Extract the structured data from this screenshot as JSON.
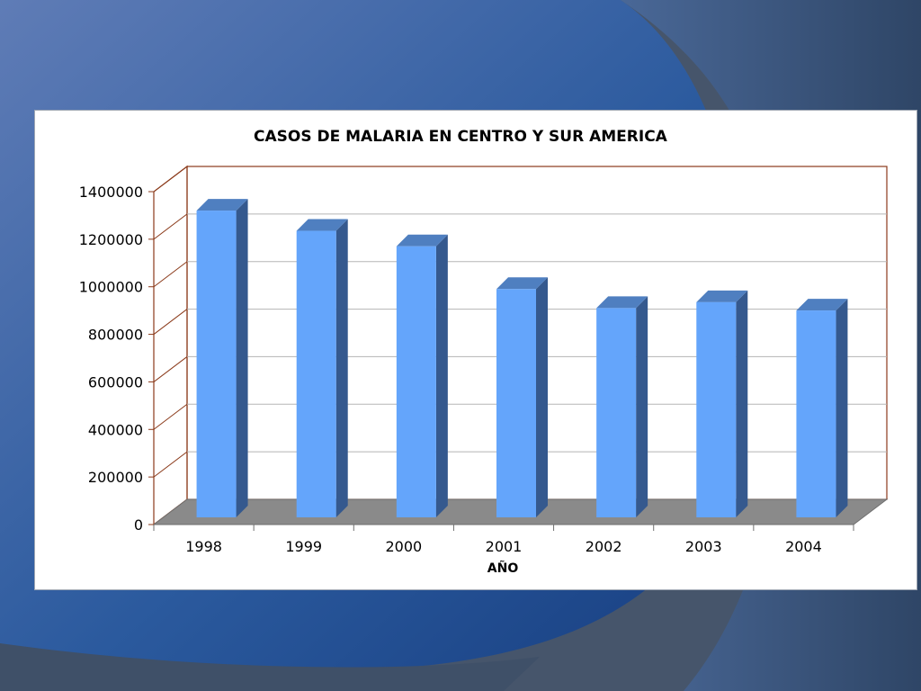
{
  "chart_data": {
    "type": "bar",
    "title": "CASOS DE MALARIA EN CENTRO Y SUR  AMERICA",
    "xlabel": "AÑO",
    "ylabel": "",
    "categories": [
      "1998",
      "1999",
      "2000",
      "2001",
      "2002",
      "2003",
      "2004"
    ],
    "values": [
      1290000,
      1205000,
      1140000,
      960000,
      880000,
      905000,
      870000
    ],
    "ylim": [
      0,
      1400000
    ],
    "yticks": [
      "0",
      "200000",
      "400000",
      "600000",
      "800000",
      "1000000",
      "1200000",
      "1400000"
    ],
    "grid": true,
    "legend": "none",
    "style": "3d-column"
  },
  "colors": {
    "bar_front": "#64a5fb",
    "bar_top": "#4f7fc0",
    "bar_side": "#35598e",
    "floor": "#8a8a8a",
    "frame": "#8b3a1a",
    "grid": "#b5b5b5",
    "panel": "#ffffff"
  }
}
